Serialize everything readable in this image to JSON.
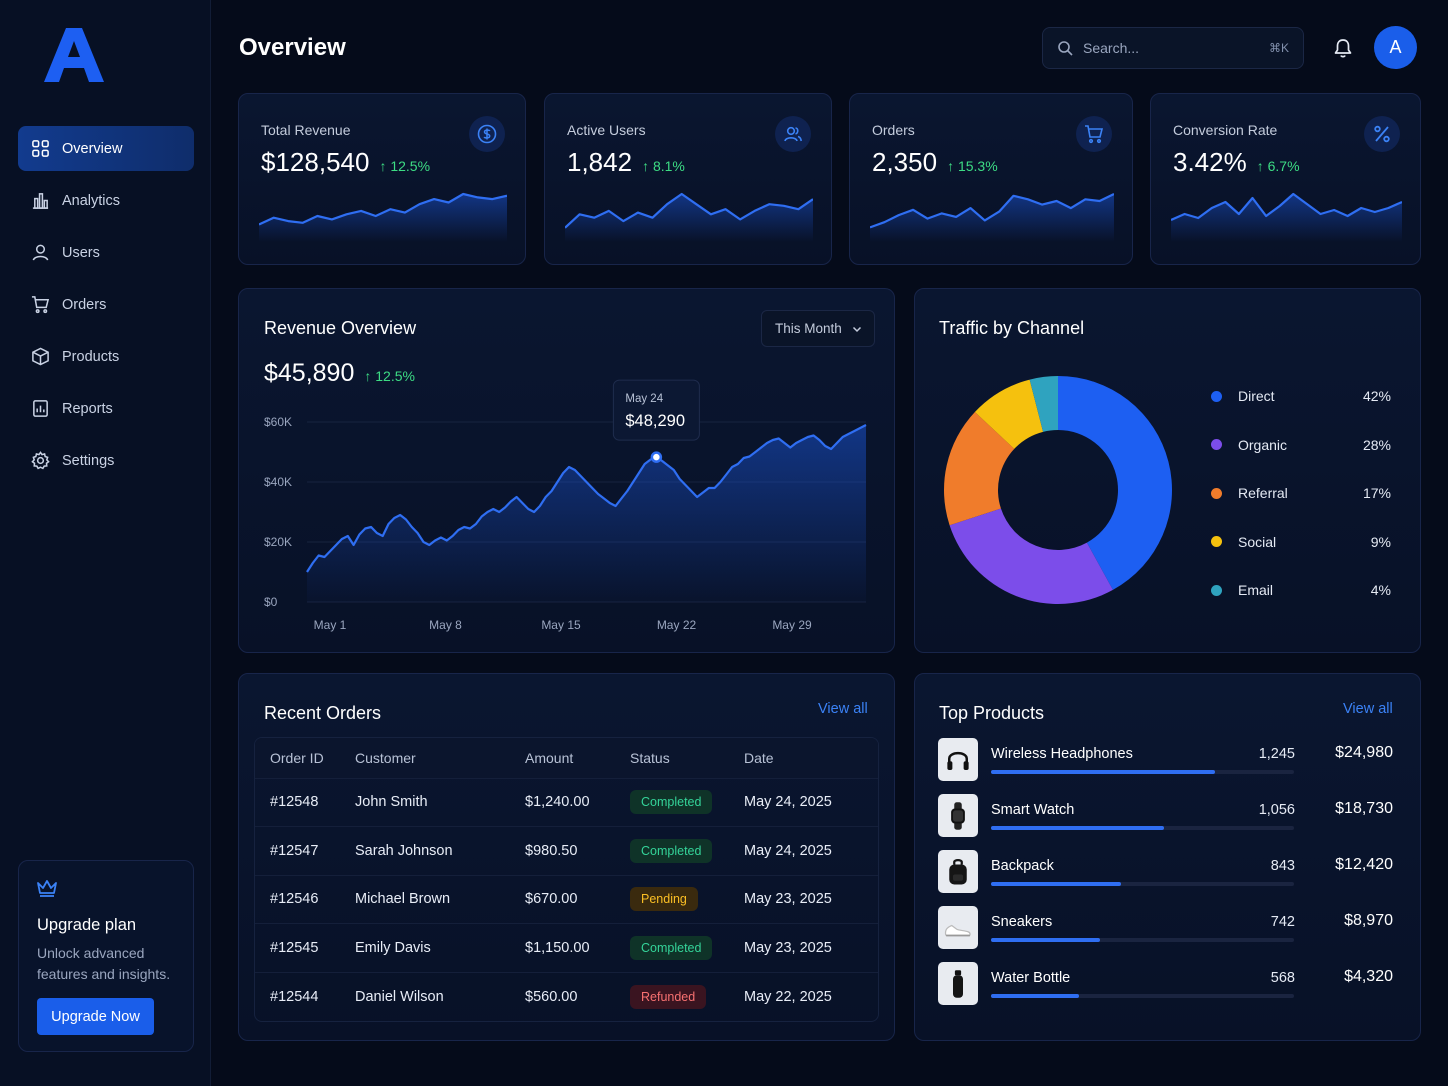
{
  "app": {
    "logo_letter": "A"
  },
  "header": {
    "title": "Overview",
    "search_placeholder": "Search...",
    "search_shortcut": "⌘K",
    "avatar_initial": "A"
  },
  "sidebar": {
    "items": [
      {
        "label": "Overview",
        "icon": "grid-icon",
        "active": true
      },
      {
        "label": "Analytics",
        "icon": "bar-chart-icon",
        "active": false
      },
      {
        "label": "Users",
        "icon": "user-icon",
        "active": false
      },
      {
        "label": "Orders",
        "icon": "cart-icon",
        "active": false
      },
      {
        "label": "Products",
        "icon": "box-icon",
        "active": false
      },
      {
        "label": "Reports",
        "icon": "report-icon",
        "active": false
      },
      {
        "label": "Settings",
        "icon": "gear-icon",
        "active": false
      }
    ],
    "upgrade": {
      "icon": "crown-icon",
      "title": "Upgrade plan",
      "text": "Unlock advanced features and insights.",
      "button": "Upgrade Now"
    }
  },
  "kpis": [
    {
      "title": "Total Revenue",
      "value": "$128,540",
      "change": "↑ 12.5%",
      "icon": "dollar-icon",
      "trend": [
        8,
        12,
        10,
        9,
        13,
        11,
        14,
        16,
        13,
        17,
        15,
        20,
        23,
        21,
        26,
        24,
        23,
        25
      ]
    },
    {
      "title": "Active Users",
      "value": "1,842",
      "change": "↑ 8.1%",
      "icon": "users-icon",
      "trend": [
        6,
        14,
        12,
        16,
        10,
        15,
        12,
        20,
        26,
        20,
        14,
        17,
        11,
        16,
        20,
        19,
        17,
        23
      ]
    },
    {
      "title": "Orders",
      "value": "2,350",
      "change": "↑ 15.3%",
      "icon": "cart-icon",
      "trend": [
        6,
        9,
        13,
        16,
        11,
        14,
        12,
        17,
        10,
        15,
        24,
        22,
        19,
        21,
        17,
        22,
        21,
        25
      ]
    },
    {
      "title": "Conversion Rate",
      "value": "3.42%",
      "change": "↑ 6.7%",
      "icon": "percent-icon",
      "trend": [
        9,
        12,
        10,
        15,
        18,
        12,
        20,
        11,
        16,
        22,
        17,
        12,
        14,
        11,
        15,
        13,
        15,
        18
      ]
    }
  ],
  "revenue": {
    "title": "Revenue Overview",
    "period": "This Month",
    "total": "$45,890",
    "change": "↑ 12.5%",
    "tooltip": {
      "date": "May 24",
      "value": "$48,290"
    }
  },
  "chart_data": {
    "type": "area",
    "title": "Revenue Overview",
    "x_ticks": [
      "May 1",
      "May 8",
      "May 15",
      "May 22",
      "May 29"
    ],
    "y_ticks": [
      "$0",
      "$20K",
      "$40K",
      "$60K"
    ],
    "ylim": [
      0,
      60000
    ],
    "series": [
      {
        "values": [
          10000,
          13000,
          15500,
          15000,
          17000,
          19000,
          21000,
          22000,
          19000,
          22500,
          24500,
          25000,
          23000,
          22000,
          26000,
          28000,
          29000,
          27500,
          25000,
          23000,
          20000,
          19000,
          20500,
          21500,
          20500,
          22000,
          24000,
          25000,
          24500,
          26000,
          28500,
          30000,
          31000,
          30000,
          31500,
          33500,
          35000,
          33000,
          31000,
          30000,
          32000,
          35000,
          37000,
          40000,
          43000,
          45000,
          44000,
          42000,
          40000,
          38000,
          36000,
          34500,
          33000,
          32000,
          34500,
          37000,
          40000,
          43000,
          46000,
          47500,
          48290,
          47000,
          45500,
          44000,
          41000,
          39000,
          37000,
          35000,
          36500,
          38000,
          38000,
          40000,
          42500,
          45000,
          46000,
          48000,
          48500,
          50000,
          51500,
          53000,
          54000,
          54500,
          53000,
          51500,
          53000,
          54000,
          55000,
          55500,
          54000,
          52000,
          51000,
          53000,
          55000,
          56000,
          57000,
          58000,
          59000
        ]
      }
    ]
  },
  "traffic": {
    "title": "Traffic by Channel",
    "chart_data": {
      "type": "pie",
      "slices": [
        {
          "label": "Direct",
          "value": 42,
          "pct": "42%",
          "color": "#1d5ff2"
        },
        {
          "label": "Organic",
          "value": 28,
          "pct": "28%",
          "color": "#7c4dea"
        },
        {
          "label": "Referral",
          "value": 17,
          "pct": "17%",
          "color": "#f07c2b"
        },
        {
          "label": "Social",
          "value": 9,
          "pct": "9%",
          "color": "#f5c10e"
        },
        {
          "label": "Email",
          "value": 4,
          "pct": "4%",
          "color": "#2fa3bf"
        }
      ]
    }
  },
  "orders": {
    "title": "Recent Orders",
    "view_all": "View all",
    "columns": [
      "Order ID",
      "Customer",
      "Amount",
      "Status",
      "Date"
    ],
    "rows": [
      {
        "id": "#12548",
        "customer": "John Smith",
        "amount": "$1,240.00",
        "status": "Completed",
        "status_type": "completed",
        "date": "May 24, 2025"
      },
      {
        "id": "#12547",
        "customer": "Sarah Johnson",
        "amount": "$980.50",
        "status": "Completed",
        "status_type": "completed",
        "date": "May 24, 2025"
      },
      {
        "id": "#12546",
        "customer": "Michael Brown",
        "amount": "$670.00",
        "status": "Pending",
        "status_type": "pending",
        "date": "May 23, 2025"
      },
      {
        "id": "#12545",
        "customer": "Emily Davis",
        "amount": "$1,150.00",
        "status": "Completed",
        "status_type": "completed",
        "date": "May 23, 2025"
      },
      {
        "id": "#12544",
        "customer": "Daniel Wilson",
        "amount": "$560.00",
        "status": "Refunded",
        "status_type": "refunded",
        "date": "May 22, 2025"
      }
    ]
  },
  "products": {
    "title": "Top Products",
    "view_all": "View all",
    "items": [
      {
        "name": "Wireless Headphones",
        "units": "1,245",
        "revenue": "$24,980",
        "share": 0.74,
        "icon": "headphones-icon"
      },
      {
        "name": "Smart Watch",
        "units": "1,056",
        "revenue": "$18,730",
        "share": 0.57,
        "icon": "watch-icon"
      },
      {
        "name": "Backpack",
        "units": "843",
        "revenue": "$12,420",
        "share": 0.43,
        "icon": "backpack-icon"
      },
      {
        "name": "Sneakers",
        "units": "742",
        "revenue": "$8,970",
        "share": 0.36,
        "icon": "sneaker-icon"
      },
      {
        "name": "Water Bottle",
        "units": "568",
        "revenue": "$4,320",
        "share": 0.29,
        "icon": "bottle-icon"
      }
    ]
  }
}
